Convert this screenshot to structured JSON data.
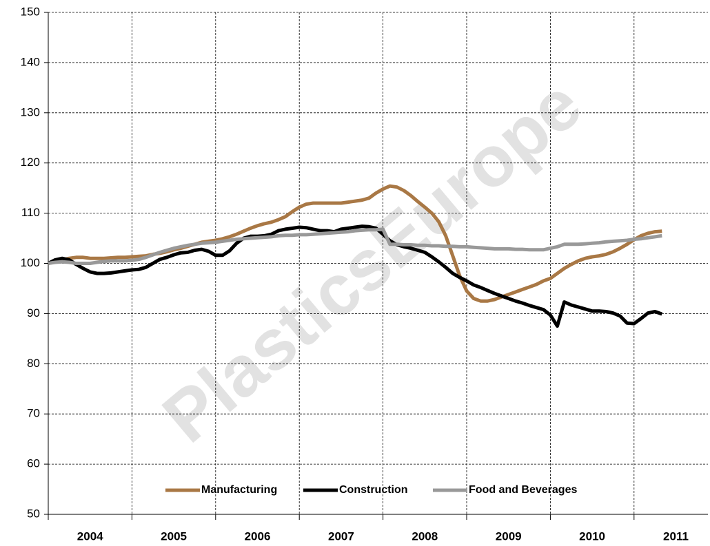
{
  "chart_data": {
    "type": "line",
    "watermark": "PlasticsEurope",
    "categories": [
      "2004",
      null,
      null,
      null,
      null,
      null,
      null,
      null,
      null,
      null,
      null,
      null,
      "2005",
      null,
      null,
      null,
      null,
      null,
      null,
      null,
      null,
      null,
      null,
      null,
      "2006",
      null,
      null,
      null,
      null,
      null,
      null,
      null,
      null,
      null,
      null,
      null,
      "2007",
      null,
      null,
      null,
      null,
      null,
      null,
      null,
      null,
      null,
      null,
      null,
      "2008",
      null,
      null,
      null,
      null,
      null,
      null,
      null,
      null,
      null,
      null,
      null,
      "2009",
      null,
      null,
      null,
      null,
      null,
      null,
      null,
      null,
      null,
      null,
      null,
      "2010",
      null,
      null,
      null,
      null,
      null,
      null,
      null,
      null,
      null,
      null,
      null,
      "2011",
      null,
      null,
      null,
      null
    ],
    "series": [
      {
        "name": "Manufacturing",
        "color": "#a97845",
        "values": [
          100,
          100.3,
          100.7,
          101,
          101.2,
          101.2,
          101,
          101,
          101,
          101.1,
          101.2,
          101.2,
          101.3,
          101.4,
          101.5,
          101.8,
          102,
          102.3,
          102.7,
          103,
          103.4,
          103.8,
          104.2,
          104.4,
          104.6,
          104.9,
          105.3,
          105.8,
          106.4,
          107,
          107.5,
          107.9,
          108.2,
          108.7,
          109.3,
          110.3,
          111.2,
          111.8,
          112,
          112,
          112,
          112,
          112,
          112.2,
          112.4,
          112.6,
          113,
          114,
          114.8,
          115.4,
          115.2,
          114.5,
          113.5,
          112.3,
          111.2,
          110,
          108.3,
          105.5,
          101.5,
          97.5,
          94.5,
          93,
          92.5,
          92.5,
          92.8,
          93.3,
          93.8,
          94.3,
          94.8,
          95.3,
          95.8,
          96.5,
          97,
          98,
          99,
          99.8,
          100.5,
          101,
          101.3,
          101.5,
          101.8,
          102.3,
          103,
          103.8,
          104.7,
          105.5,
          106,
          106.3,
          106.4
        ]
      },
      {
        "name": "Construction",
        "color": "#000000",
        "values": [
          100,
          100.7,
          101,
          100.7,
          99.8,
          99,
          98.3,
          98,
          98,
          98.1,
          98.3,
          98.5,
          98.7,
          98.8,
          99.2,
          100,
          100.8,
          101.2,
          101.7,
          102.1,
          102.2,
          102.6,
          102.8,
          102.4,
          101.6,
          101.6,
          102.5,
          104,
          105,
          105.4,
          105.4,
          105.5,
          105.8,
          106.5,
          106.8,
          107,
          107.2,
          107.1,
          106.8,
          106.5,
          106.5,
          106.3,
          106.8,
          107,
          107.2,
          107.4,
          107.3,
          107,
          105.8,
          104.5,
          103.7,
          103.3,
          103,
          102.6,
          102.2,
          101.3,
          100.3,
          99.2,
          98,
          97.2,
          96.5,
          95.7,
          95.2,
          94.6,
          94,
          93.5,
          93,
          92.5,
          92.1,
          91.6,
          91.2,
          90.8,
          89.7,
          87.5,
          92.3,
          91.7,
          91.3,
          90.9,
          90.5,
          90.5,
          90.4,
          90.1,
          89.5,
          88.1,
          88,
          89,
          90.1,
          90.4,
          89.9
        ]
      },
      {
        "name": "Food and Beverages",
        "color": "#999999",
        "values": [
          100,
          100.2,
          100.3,
          100.2,
          100,
          100,
          100,
          100.2,
          100.4,
          100.5,
          100.5,
          100.5,
          100.6,
          100.8,
          101.2,
          101.7,
          102.2,
          102.6,
          103,
          103.3,
          103.6,
          103.8,
          104,
          104.1,
          104.2,
          104.4,
          104.6,
          104.8,
          104.9,
          105,
          105.1,
          105.2,
          105.3,
          105.5,
          105.6,
          105.6,
          105.7,
          105.7,
          105.8,
          105.9,
          106,
          106.1,
          106.2,
          106.3,
          106.5,
          106.6,
          106.7,
          106.7,
          106.8,
          103.8,
          103.8,
          103.7,
          103.7,
          103.6,
          103.6,
          103.5,
          103.5,
          103.4,
          103.4,
          103.3,
          103.3,
          103.2,
          103.1,
          103,
          102.9,
          102.9,
          102.9,
          102.8,
          102.8,
          102.7,
          102.7,
          102.7,
          103,
          103.3,
          103.8,
          103.8,
          103.8,
          103.9,
          104,
          104.1,
          104.3,
          104.4,
          104.5,
          104.6,
          104.8,
          104.9,
          105.1,
          105.3,
          105.5
        ]
      }
    ],
    "ylim": [
      50,
      150
    ],
    "yticks": [
      50,
      60,
      70,
      80,
      90,
      100,
      110,
      120,
      130,
      140,
      150
    ],
    "grid": true,
    "legend": "bottom"
  }
}
